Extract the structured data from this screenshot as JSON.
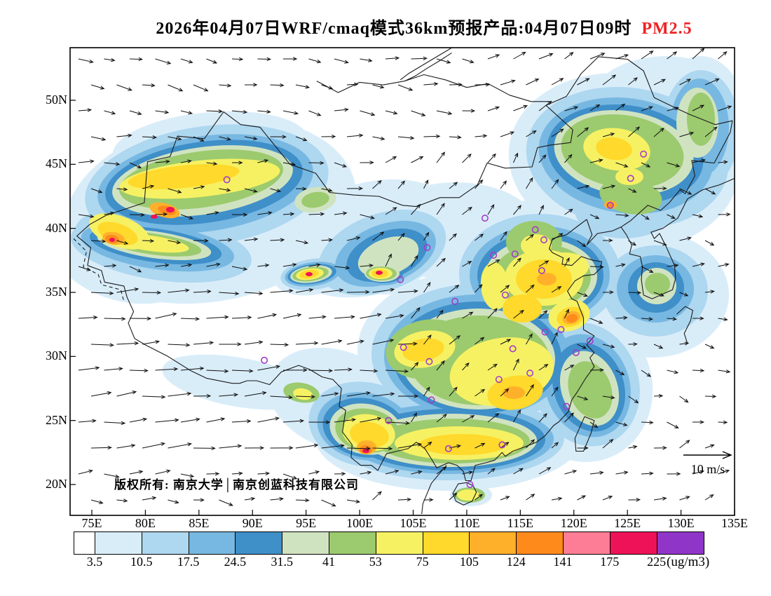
{
  "title": {
    "text": "2026年04月07日WRF/cmaq模式36km预报产品:04月07日09时",
    "pollutant": "PM2.5",
    "pollutant_color": "#ee2222"
  },
  "map": {
    "lat_tick_labels": [
      "50N",
      "45N",
      "40N",
      "35N",
      "30N",
      "25N",
      "20N"
    ],
    "lon_tick_labels": [
      "75E",
      "80E",
      "85E",
      "90E",
      "95E",
      "100E",
      "105E",
      "110E",
      "115E",
      "120E",
      "125E",
      "130E",
      "135E"
    ],
    "copyright": "版权所有: 南京大学│南京创蓝科技有限公司",
    "wind_ref_label": "10 m/s"
  },
  "colorbar": {
    "unit": "(ug/m3)",
    "tick_labels": [
      "3.5",
      "10.5",
      "17.5",
      "24.5",
      "31.5",
      "41",
      "53",
      "75",
      "105",
      "124",
      "141",
      "175",
      "225"
    ],
    "colors": [
      "#ffffff",
      "#d9edf9",
      "#aed7f0",
      "#77b8e2",
      "#3f8fc9",
      "#d0e3c1",
      "#9cca6e",
      "#f6f163",
      "#ffd92b",
      "#ffb02a",
      "#ff8a1c",
      "#fc7d95",
      "#ee1258",
      "#8f36c9"
    ]
  },
  "chart_data": {
    "type": "heatmap",
    "title": "2026年04月07日WRF/cmaq模式36km预报产品:04月07日09时 PM2.5",
    "variable": "PM2.5",
    "units": "ug/m3",
    "model": "WRF/cmaq",
    "grid_resolution": "36km",
    "valid_time": "04月07日09时",
    "lon_axis": [
      75,
      80,
      85,
      90,
      95,
      100,
      105,
      110,
      115,
      120,
      125,
      130,
      135
    ],
    "lat_axis": [
      50,
      45,
      40,
      35,
      30,
      25,
      20
    ],
    "contour_levels": [
      3.5,
      10.5,
      17.5,
      24.5,
      31.5,
      41,
      53,
      75,
      105,
      124,
      141,
      175,
      225
    ],
    "palette": [
      "#ffffff",
      "#d9edf9",
      "#aed7f0",
      "#77b8e2",
      "#3f8fc9",
      "#d0e3c1",
      "#9cca6e",
      "#f6f163",
      "#ffd92b",
      "#ffb02a",
      "#ff8a1c",
      "#fc7d95",
      "#ee1258",
      "#8f36c9"
    ],
    "wind_reference_ms": 10,
    "overlays": [
      "wind-vectors",
      "station-circles",
      "coastlines-and-borders"
    ],
    "high_value_regions": [
      "Tianshan belt in northern Xinjiang: 53-124 with spots above 141",
      "southwestern Xinjiang rim: 75-141 with small spots above 175",
      "Qaidam basin spot near 95E,36.5N: above 141",
      "Xining-Lanzhou spot near 102E,36.5N: above 141",
      "North China Plain: 41-105",
      "Jiangsu-Anhui spot near 119E,33.5N: 105-141",
      "Sichuan basin: 53-105",
      "Hunan-Jiangxi belt: 53-105",
      "southern Yunnan spot: 105-175",
      "south China coastal belt: 41-105",
      "Northeast Harbin-Changchun area: 41-105 with Shenyang spot 105-141"
    ],
    "stations_lonlat": [
      [
        87.6,
        43.8
      ],
      [
        91.1,
        29.7
      ],
      [
        103.8,
        36.0
      ],
      [
        106.3,
        38.5
      ],
      [
        111.7,
        40.8
      ],
      [
        116.4,
        39.9
      ],
      [
        117.2,
        39.1
      ],
      [
        114.5,
        38.0
      ],
      [
        112.5,
        37.9
      ],
      [
        117.0,
        36.7
      ],
      [
        113.6,
        34.8
      ],
      [
        108.9,
        34.3
      ],
      [
        126.5,
        45.8
      ],
      [
        125.3,
        43.9
      ],
      [
        123.4,
        41.8
      ],
      [
        104.1,
        30.7
      ],
      [
        106.5,
        29.6
      ],
      [
        114.3,
        30.6
      ],
      [
        117.3,
        31.9
      ],
      [
        118.8,
        32.1
      ],
      [
        121.5,
        31.2
      ],
      [
        120.2,
        30.3
      ],
      [
        115.9,
        28.7
      ],
      [
        113.0,
        28.2
      ],
      [
        106.7,
        26.6
      ],
      [
        102.7,
        25.0
      ],
      [
        119.3,
        26.1
      ],
      [
        113.3,
        23.1
      ],
      [
        108.3,
        22.8
      ],
      [
        110.3,
        20.0
      ]
    ]
  }
}
